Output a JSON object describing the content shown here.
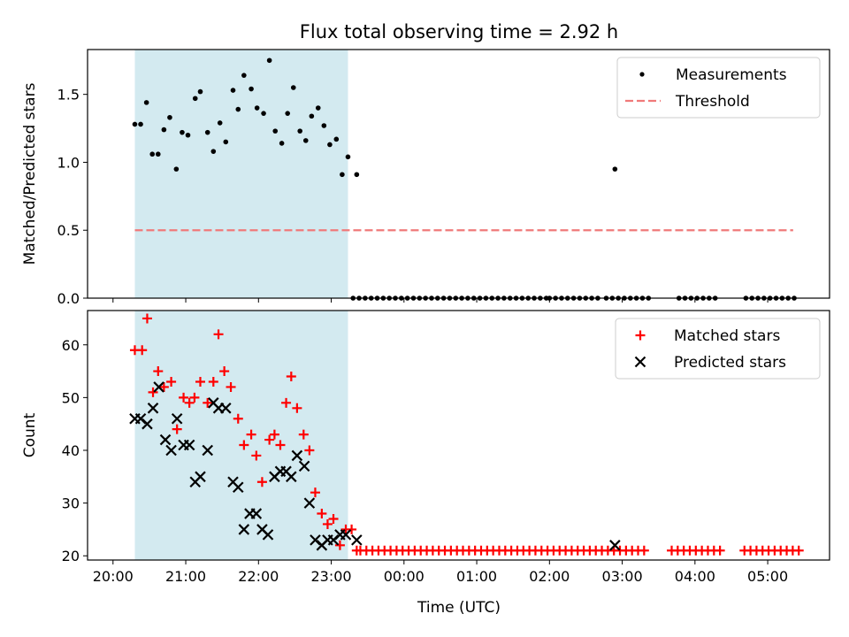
{
  "figure": {
    "title": "Flux total observing time = 2.92 h",
    "xlabel": "Time (UTC)"
  },
  "chart_data": [
    {
      "type": "scatter",
      "title": "Flux total observing time = 2.92 h",
      "xlabel": "",
      "ylabel": "Matched/Predicted stars",
      "x_unit": "hours since 20:00 UTC",
      "xlim": [
        -0.35,
        9.85
      ],
      "ylim": [
        0,
        1.83
      ],
      "yticks": [
        "0.0",
        "0.5",
        "1.0",
        "1.5"
      ],
      "shaded_span": [
        0.3,
        3.23
      ],
      "shade_color": "#d3eaf0",
      "legend": {
        "position": "top-right",
        "entries": [
          "Measurements",
          "Threshold"
        ]
      },
      "series": [
        {
          "name": "Measurements",
          "marker": "dot",
          "color": "#000000",
          "x": [
            0.3,
            0.38,
            0.46,
            0.54,
            0.62,
            0.7,
            0.78,
            0.87,
            0.95,
            1.03,
            1.13,
            1.2,
            1.3,
            1.38,
            1.47,
            1.55,
            1.65,
            1.72,
            1.8,
            1.9,
            1.98,
            2.07,
            2.15,
            2.23,
            2.32,
            2.4,
            2.48,
            2.57,
            2.65,
            2.73,
            2.82,
            2.9,
            2.98,
            3.07,
            3.15,
            3.23,
            3.35
          ],
          "y": [
            1.28,
            1.28,
            1.44,
            1.06,
            1.06,
            1.24,
            1.33,
            0.95,
            1.22,
            1.2,
            1.47,
            1.52,
            1.22,
            1.08,
            1.29,
            1.15,
            1.53,
            1.39,
            1.64,
            1.54,
            1.4,
            1.36,
            1.75,
            1.23,
            1.14,
            1.36,
            1.55,
            1.23,
            1.16,
            1.34,
            1.4,
            1.27,
            1.13,
            1.17,
            0.91,
            1.04,
            0.91
          ]
        },
        {
          "name": "Measurements (zero values)",
          "marker": "dot",
          "color": "#000000",
          "value": 0,
          "x_ranges": [
            [
              3.3,
              6.0,
              0.083
            ],
            [
              6.0,
              6.7,
              0.083
            ],
            [
              6.78,
              7.43,
              0.083
            ],
            [
              7.78,
              8.33,
              0.083
            ],
            [
              8.7,
              9.43,
              0.083
            ]
          ]
        },
        {
          "name": "Measurements (outlier)",
          "marker": "dot",
          "color": "#000000",
          "x": [
            6.9
          ],
          "y": [
            0.95
          ]
        },
        {
          "name": "Threshold",
          "type": "line",
          "style": "dashed",
          "color": "#f07a7a",
          "x": [
            0.3,
            9.35
          ],
          "y": [
            0.5,
            0.5
          ]
        }
      ]
    },
    {
      "type": "scatter",
      "xlabel": "Time (UTC)",
      "ylabel": "Count",
      "x_unit": "hours since 20:00 UTC",
      "xlim": [
        -0.35,
        9.85
      ],
      "ylim": [
        19.2,
        66.5
      ],
      "yticks": [
        "20",
        "30",
        "40",
        "50",
        "60"
      ],
      "xticks": [
        "20:00",
        "21:00",
        "22:00",
        "23:00",
        "00:00",
        "01:00",
        "02:00",
        "03:00",
        "04:00",
        "05:00"
      ],
      "shaded_span": [
        0.3,
        3.23
      ],
      "shade_color": "#d3eaf0",
      "legend": {
        "position": "top-right",
        "entries": [
          "Matched stars",
          "Predicted stars"
        ]
      },
      "series": [
        {
          "name": "Matched stars",
          "marker": "plus",
          "color": "#ff0000",
          "x": [
            0.3,
            0.4,
            0.47,
            0.55,
            0.62,
            0.7,
            0.8,
            0.88,
            0.97,
            1.05,
            1.12,
            1.2,
            1.3,
            1.38,
            1.45,
            1.53,
            1.62,
            1.72,
            1.8,
            1.9,
            1.97,
            2.05,
            2.15,
            2.22,
            2.3,
            2.38,
            2.45,
            2.53,
            2.62,
            2.7,
            2.78,
            2.87,
            2.95,
            3.03,
            3.12,
            3.2,
            3.28,
            3.35
          ],
          "y": [
            59,
            59,
            65,
            51,
            55,
            52,
            53,
            44,
            50,
            49,
            50,
            53,
            49,
            53,
            62,
            55,
            52,
            46,
            41,
            43,
            39,
            34,
            42,
            43,
            41,
            49,
            54,
            48,
            43,
            40,
            32,
            28,
            26,
            27,
            22,
            25,
            25,
            21
          ]
        },
        {
          "name": "Matched stars (baseline)",
          "marker": "plus",
          "color": "#ff0000",
          "value": 21,
          "x_ranges": [
            [
              3.4,
              7.35,
              0.083
            ],
            [
              7.68,
              8.36,
              0.083
            ],
            [
              8.68,
              9.43,
              0.083
            ]
          ]
        },
        {
          "name": "Predicted stars",
          "marker": "x",
          "color": "#000000",
          "x": [
            0.3,
            0.38,
            0.47,
            0.55,
            0.63,
            0.72,
            0.8,
            0.88,
            0.97,
            1.05,
            1.13,
            1.2,
            1.3,
            1.38,
            1.45,
            1.55,
            1.65,
            1.72,
            1.8,
            1.88,
            1.97,
            2.05,
            2.13,
            2.22,
            2.3,
            2.38,
            2.45,
            2.53,
            2.63,
            2.7,
            2.78,
            2.87,
            2.95,
            3.03,
            3.12,
            3.2,
            3.35,
            6.9
          ],
          "y": [
            46,
            46,
            45,
            48,
            52,
            42,
            40,
            46,
            41,
            41,
            34,
            35,
            40,
            49,
            48,
            48,
            34,
            33,
            25,
            28,
            28,
            25,
            24,
            35,
            36,
            36,
            35,
            39,
            37,
            30,
            23,
            22,
            23,
            23,
            24,
            24,
            23,
            22
          ]
        }
      ]
    }
  ]
}
